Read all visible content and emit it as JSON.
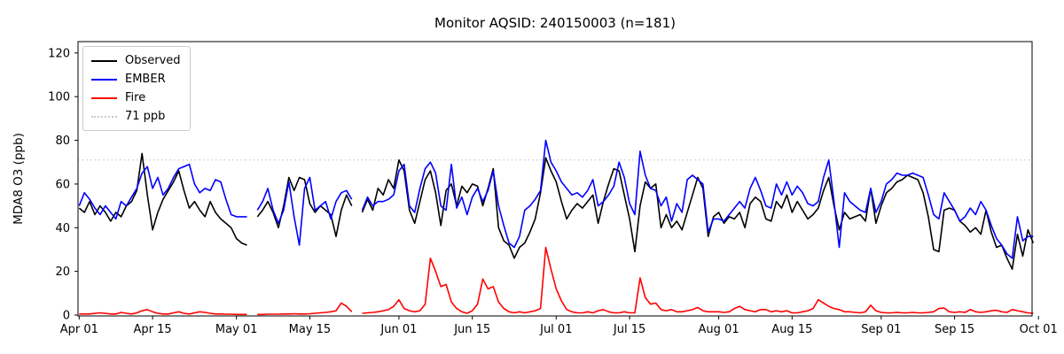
{
  "figure": {
    "title": "Monitor AQSID: 240150003 (n=181)",
    "y_axis_label": "MDA8 O3 (ppb)"
  },
  "legend": {
    "items": [
      {
        "label": "Observed",
        "color": "#000000",
        "style": "solid"
      },
      {
        "label": "EMBER",
        "color": "#0000ff",
        "style": "solid"
      },
      {
        "label": "Fire",
        "color": "#ff0000",
        "style": "solid"
      },
      {
        "label": "71 ppb",
        "color": "#c8c8c8",
        "style": "dotted"
      }
    ]
  },
  "chart_data": {
    "type": "line",
    "title": "Monitor AQSID: 240150003 (n=181)",
    "xlabel": "",
    "ylabel": "MDA8 O3 (ppb)",
    "n_points": 181,
    "grid": false,
    "legend_position": "upper left",
    "ylim": [
      0,
      125
    ],
    "y_ticks": [
      0,
      20,
      40,
      60,
      80,
      100,
      120
    ],
    "x_unit": "days since Apr 01 (daily values, Apr 01 - Sep 30)",
    "x_ticks": [
      {
        "label": "Apr 01",
        "day": 0
      },
      {
        "label": "Apr 15",
        "day": 14
      },
      {
        "label": "May 01",
        "day": 30
      },
      {
        "label": "May 15",
        "day": 44
      },
      {
        "label": "Jun 01",
        "day": 61
      },
      {
        "label": "Jun 15",
        "day": 75
      },
      {
        "label": "Jul 01",
        "day": 91
      },
      {
        "label": "Jul 15",
        "day": 105
      },
      {
        "label": "Aug 01",
        "day": 122
      },
      {
        "label": "Aug 15",
        "day": 136
      },
      {
        "label": "Sep 01",
        "day": 153
      },
      {
        "label": "Sep 15",
        "day": 167
      },
      {
        "label": "Oct 01",
        "day": 183
      }
    ],
    "threshold": {
      "label": "71 ppb",
      "value": 71,
      "color": "#c8c8c8",
      "style": "dotted"
    },
    "missing_days": [
      "May 04",
      "May 24"
    ],
    "series": [
      {
        "name": "Observed",
        "color": "#000000",
        "values": [
          49,
          47,
          52,
          46,
          50,
          47,
          43,
          47,
          45,
          50,
          52,
          57,
          74,
          55,
          39,
          47,
          53,
          57,
          61,
          66,
          57,
          49,
          52,
          48,
          45,
          52,
          47,
          44,
          42,
          40,
          35,
          33,
          32,
          null,
          45,
          48,
          52,
          47,
          40,
          50,
          63,
          57,
          63,
          62,
          51,
          47,
          50,
          48,
          46,
          36,
          48,
          55,
          50,
          null,
          47,
          53,
          48,
          58,
          55,
          62,
          58,
          71,
          66,
          48,
          42,
          52,
          62,
          66,
          56,
          41,
          57,
          60,
          50,
          59,
          56,
          60,
          59,
          50,
          58,
          67,
          40,
          34,
          32,
          26,
          31,
          33,
          38,
          44,
          56,
          72,
          66,
          61,
          52,
          44,
          48,
          51,
          49,
          52,
          55,
          42,
          52,
          60,
          67,
          66,
          55,
          44,
          29,
          50,
          61,
          58,
          60,
          40,
          46,
          40,
          43,
          39,
          47,
          55,
          63,
          58,
          36,
          45,
          47,
          42,
          45,
          44,
          47,
          40,
          51,
          54,
          52,
          44,
          43,
          52,
          49,
          55,
          47,
          52,
          48,
          44,
          46,
          49,
          57,
          63,
          50,
          39,
          47,
          44,
          45,
          46,
          43,
          58,
          42,
          50,
          56,
          58,
          61,
          62,
          64,
          63,
          62,
          56,
          45,
          30,
          29,
          48,
          49,
          48,
          43,
          41,
          38,
          40,
          37,
          48,
          38,
          31,
          32,
          26,
          21,
          37,
          27,
          39,
          33
        ]
      },
      {
        "name": "EMBER",
        "color": "#0000ff",
        "values": [
          50,
          56,
          53,
          49,
          46,
          50,
          47,
          44,
          52,
          50,
          54,
          58,
          65,
          68,
          58,
          63,
          55,
          58,
          63,
          67,
          68,
          69,
          60,
          56,
          58,
          57,
          62,
          61,
          53,
          46,
          45,
          45,
          45,
          null,
          48,
          52,
          58,
          48,
          42,
          48,
          61,
          45,
          32,
          58,
          63,
          48,
          50,
          52,
          44,
          52,
          56,
          57,
          53,
          null,
          48,
          54,
          50,
          52,
          52,
          53,
          55,
          66,
          69,
          50,
          47,
          58,
          67,
          70,
          65,
          50,
          48,
          69,
          49,
          54,
          46,
          54,
          58,
          52,
          57,
          66,
          50,
          41,
          33,
          31,
          36,
          48,
          50,
          53,
          57,
          80,
          70,
          66,
          61,
          58,
          55,
          56,
          54,
          57,
          62,
          50,
          52,
          55,
          59,
          70,
          63,
          51,
          46,
          75,
          64,
          58,
          57,
          50,
          54,
          43,
          51,
          47,
          62,
          64,
          62,
          60,
          38,
          44,
          44,
          43,
          46,
          49,
          52,
          49,
          58,
          63,
          57,
          50,
          49,
          60,
          55,
          61,
          55,
          59,
          56,
          51,
          50,
          52,
          63,
          71,
          52,
          31,
          56,
          52,
          50,
          48,
          47,
          58,
          47,
          52,
          60,
          62,
          65,
          64,
          64,
          65,
          64,
          63,
          55,
          46,
          44,
          56,
          52,
          48,
          43,
          45,
          49,
          46,
          52,
          48,
          41,
          35,
          32,
          28,
          26,
          45,
          34,
          36,
          36
        ]
      },
      {
        "name": "Fire",
        "color": "#ff0000",
        "values": [
          0.5,
          0.5,
          0.5,
          0.8,
          1,
          0.8,
          0.5,
          0.5,
          1.2,
          0.8,
          0.5,
          1,
          2,
          2.5,
          1.5,
          0.8,
          0.5,
          0.5,
          1,
          1.5,
          0.8,
          0.5,
          1,
          1.5,
          1.2,
          0.8,
          0.5,
          0.5,
          0.4,
          0.4,
          0.3,
          0.3,
          0.3,
          null,
          0.3,
          0.3,
          0.4,
          0.4,
          0.4,
          0.5,
          0.5,
          0.6,
          0.5,
          0.5,
          0.6,
          0.8,
          1,
          1.2,
          1.5,
          2,
          5.5,
          4,
          1.5,
          null,
          0.8,
          1,
          1.2,
          1.5,
          2,
          2.5,
          4,
          7,
          3,
          2,
          1.5,
          2,
          5,
          26,
          20,
          13,
          14,
          6,
          3,
          1.5,
          0.8,
          2,
          5,
          16.5,
          12,
          13,
          6,
          3,
          1.5,
          1,
          1.5,
          1,
          1.5,
          2,
          3,
          31,
          21,
          12,
          6.5,
          2.5,
          1.5,
          1,
          1,
          1.5,
          1,
          2,
          2.5,
          1.5,
          1,
          1,
          1.5,
          1,
          1,
          17,
          8,
          5,
          5.5,
          2.5,
          2,
          2.5,
          1.5,
          1.5,
          2,
          2.5,
          3.5,
          2,
          1.5,
          1.5,
          1.5,
          1.2,
          1.5,
          3,
          4,
          2.5,
          2,
          1.5,
          2.5,
          2.5,
          1.5,
          2,
          1.5,
          2,
          1,
          1,
          1.5,
          2,
          3,
          7,
          5.5,
          4,
          3,
          2.5,
          1.5,
          1.5,
          1.2,
          1,
          1.5,
          4.5,
          2,
          1.2,
          1,
          1,
          1.2,
          1,
          1,
          1.2,
          1,
          1,
          1.2,
          1.5,
          3,
          3.2,
          1.5,
          1.2,
          1.5,
          1.2,
          2.5,
          1.5,
          1.2,
          1.5,
          2,
          2.2,
          1.5,
          1.2,
          2.5,
          2,
          1.5,
          1,
          0.8
        ]
      }
    ]
  }
}
